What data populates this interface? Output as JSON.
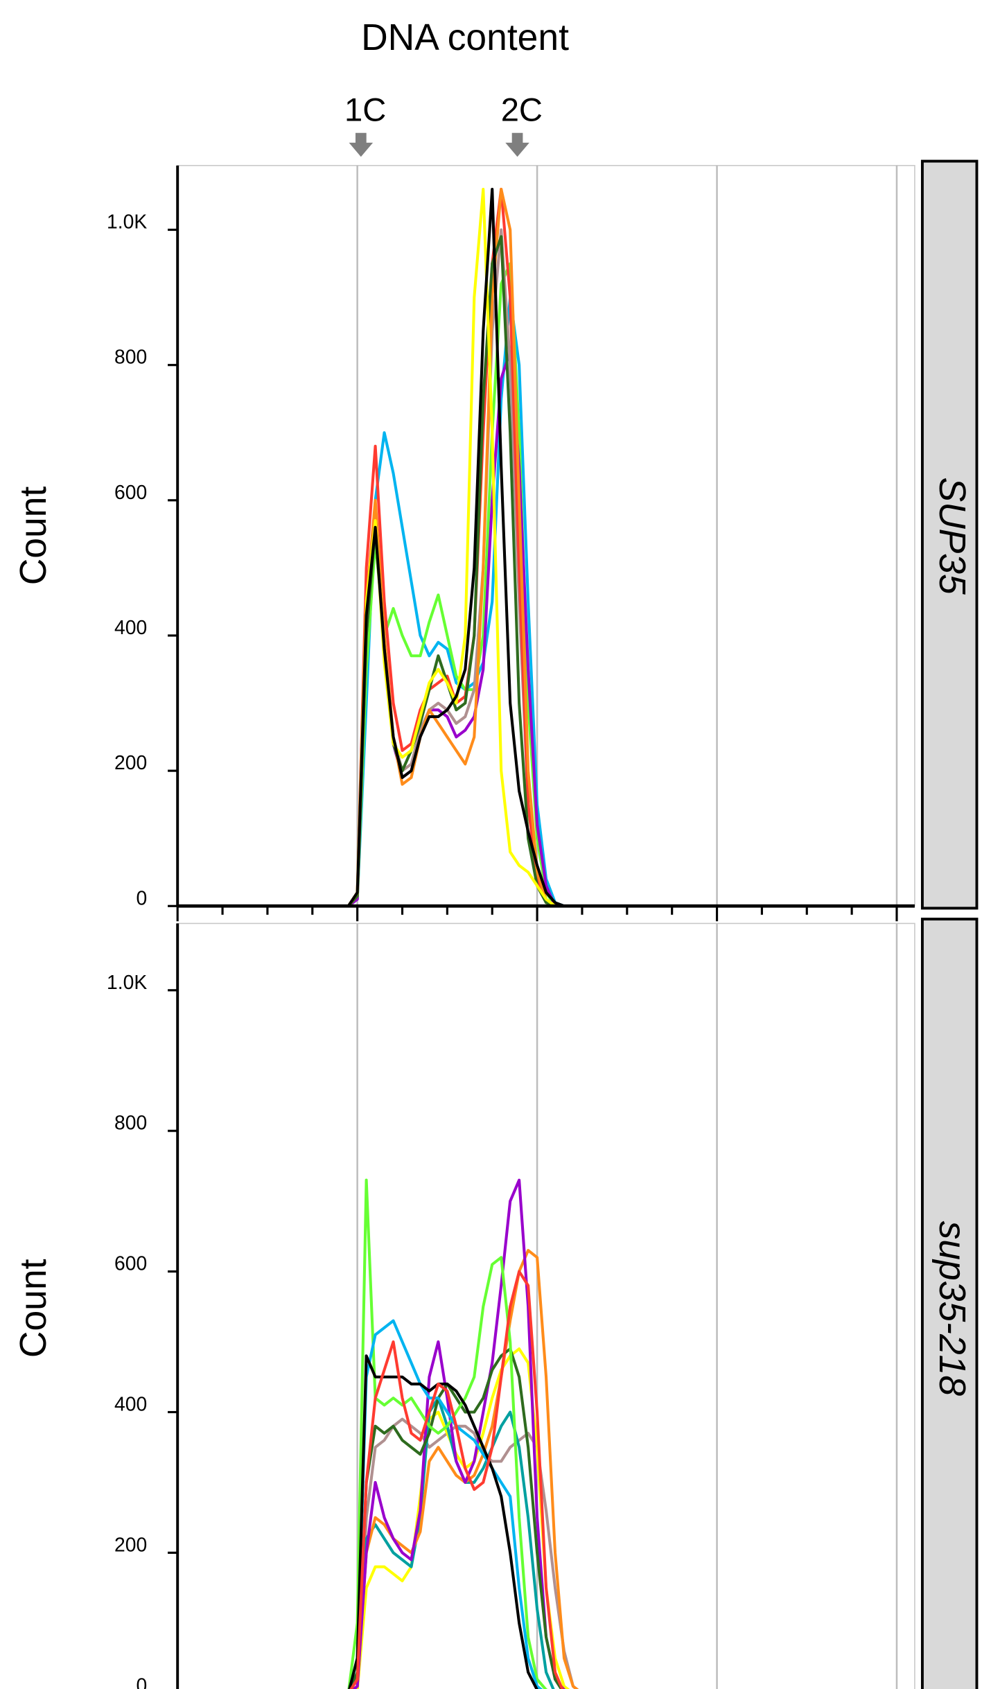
{
  "chart_data": [
    {
      "type": "line",
      "title": "DNA content",
      "ylabel": "Count",
      "strip": "SUP35",
      "annotations": [
        {
          "text": "1C",
          "x": 1.02
        },
        {
          "text": "2C",
          "x": 1.89
        }
      ],
      "xlim": [
        0,
        4.1
      ],
      "xticks": [
        0,
        0.25,
        0.5,
        0.75,
        1,
        1.25,
        1.5,
        1.75,
        2,
        2.25,
        2.5,
        2.75,
        3,
        3.25,
        3.5,
        3.75,
        4
      ],
      "grid_x": true,
      "ylim": [
        0,
        1095
      ],
      "yticks": [
        0,
        200,
        400,
        600,
        800,
        {
          "value": 1000,
          "label": "1.0K"
        }
      ],
      "x": [
        0,
        0.95,
        1.0,
        1.05,
        1.1,
        1.15,
        1.2,
        1.25,
        1.3,
        1.35,
        1.4,
        1.45,
        1.5,
        1.55,
        1.6,
        1.65,
        1.7,
        1.75,
        1.8,
        1.85,
        1.9,
        1.95,
        2.0,
        2.05,
        2.1,
        2.15,
        2.2,
        2.25,
        4.05
      ],
      "series": [
        {
          "color": "#00b4f0",
          "values": [
            0,
            0,
            10,
            300,
            600,
            700,
            640,
            560,
            480,
            400,
            370,
            390,
            380,
            330,
            320,
            330,
            360,
            450,
            750,
            900,
            800,
            450,
            150,
            40,
            5,
            0,
            0,
            0,
            0
          ]
        },
        {
          "color": "#66ff33",
          "values": [
            0,
            0,
            10,
            350,
            540,
            400,
            440,
            400,
            370,
            370,
            420,
            460,
            400,
            340,
            320,
            320,
            400,
            700,
            920,
            950,
            700,
            300,
            100,
            20,
            0,
            0,
            0,
            0,
            0
          ]
        },
        {
          "color": "#9900cc",
          "values": [
            0,
            0,
            10,
            400,
            570,
            380,
            240,
            190,
            200,
            250,
            290,
            290,
            280,
            250,
            260,
            280,
            350,
            600,
            780,
            820,
            650,
            350,
            120,
            30,
            0,
            0,
            0,
            0,
            0
          ]
        },
        {
          "color": "#b09090",
          "values": [
            0,
            0,
            15,
            420,
            580,
            390,
            250,
            200,
            210,
            260,
            290,
            300,
            290,
            270,
            280,
            320,
            500,
            850,
            1000,
            800,
            450,
            150,
            40,
            10,
            0,
            0,
            0,
            0,
            0
          ]
        },
        {
          "color": "#ff3b30",
          "values": [
            0,
            0,
            20,
            500,
            680,
            450,
            300,
            230,
            240,
            290,
            320,
            330,
            340,
            300,
            310,
            400,
            700,
            950,
            1060,
            900,
            500,
            150,
            40,
            10,
            0,
            0,
            0,
            0,
            0
          ]
        },
        {
          "color": "#ff8c1a",
          "values": [
            0,
            0,
            15,
            450,
            600,
            400,
            250,
            180,
            190,
            250,
            290,
            270,
            250,
            230,
            210,
            250,
            500,
            900,
            1060,
            1000,
            600,
            200,
            50,
            10,
            0,
            0,
            0,
            0,
            0
          ]
        },
        {
          "color": "#2e6b1e",
          "values": [
            0,
            0,
            15,
            400,
            560,
            380,
            240,
            200,
            230,
            270,
            320,
            370,
            330,
            290,
            300,
            400,
            750,
            950,
            990,
            700,
            300,
            100,
            30,
            5,
            0,
            0,
            0,
            0,
            0
          ]
        },
        {
          "color": "#ffff00",
          "values": [
            0,
            0,
            20,
            450,
            570,
            360,
            240,
            220,
            230,
            280,
            330,
            350,
            330,
            300,
            400,
            900,
            1060,
            700,
            200,
            80,
            60,
            50,
            30,
            10,
            0,
            0,
            0,
            0,
            0
          ]
        },
        {
          "color": "#000000",
          "values": [
            0,
            0,
            20,
            430,
            560,
            380,
            250,
            190,
            200,
            250,
            280,
            280,
            290,
            310,
            350,
            500,
            850,
            1060,
            650,
            300,
            170,
            110,
            60,
            20,
            5,
            0,
            0,
            0,
            0
          ]
        }
      ]
    },
    {
      "type": "line",
      "ylabel": "Count",
      "strip": "sup35-218",
      "xlim": [
        0,
        4.1
      ],
      "xticks": [
        0,
        0.25,
        0.5,
        0.75,
        1,
        1.25,
        1.5,
        1.75,
        2,
        2.25,
        2.5,
        2.75,
        3,
        3.25,
        3.5,
        3.75,
        4
      ],
      "grid_x": true,
      "ylim": [
        0,
        1095
      ],
      "yticks": [
        0,
        200,
        400,
        600,
        800,
        {
          "value": 1000,
          "label": "1.0K"
        }
      ],
      "x": [
        0,
        0.95,
        1.0,
        1.05,
        1.1,
        1.15,
        1.2,
        1.25,
        1.3,
        1.35,
        1.4,
        1.45,
        1.5,
        1.55,
        1.6,
        1.65,
        1.7,
        1.75,
        1.8,
        1.85,
        1.9,
        1.95,
        2.0,
        2.05,
        2.1,
        2.15,
        2.2,
        2.25,
        4.05
      ],
      "series": [
        {
          "color": "#b09090",
          "values": [
            0,
            0,
            10,
            250,
            350,
            360,
            380,
            390,
            380,
            370,
            350,
            360,
            370,
            380,
            380,
            370,
            340,
            330,
            330,
            350,
            360,
            370,
            350,
            260,
            150,
            60,
            10,
            0,
            0
          ]
        },
        {
          "color": "#ffff00",
          "values": [
            0,
            0,
            5,
            150,
            180,
            180,
            170,
            160,
            180,
            280,
            390,
            400,
            370,
            340,
            320,
            330,
            370,
            420,
            460,
            480,
            490,
            470,
            350,
            150,
            50,
            10,
            0,
            0,
            0
          ]
        },
        {
          "color": "#00a0a0",
          "values": [
            0,
            0,
            10,
            220,
            240,
            220,
            200,
            190,
            180,
            250,
            400,
            420,
            380,
            330,
            300,
            300,
            320,
            350,
            380,
            400,
            350,
            250,
            120,
            30,
            0,
            0,
            0,
            0,
            0
          ]
        },
        {
          "color": "#ff8c1a",
          "values": [
            0,
            0,
            10,
            200,
            250,
            240,
            220,
            210,
            200,
            230,
            330,
            350,
            330,
            310,
            300,
            310,
            340,
            380,
            450,
            530,
            600,
            630,
            620,
            450,
            200,
            50,
            10,
            0,
            0
          ]
        },
        {
          "color": "#9900cc",
          "values": [
            0,
            0,
            10,
            200,
            300,
            250,
            220,
            200,
            190,
            260,
            450,
            500,
            420,
            330,
            300,
            330,
            400,
            470,
            580,
            700,
            730,
            550,
            250,
            80,
            20,
            5,
            0,
            0,
            0
          ]
        },
        {
          "color": "#2e6b1e",
          "values": [
            0,
            0,
            30,
            300,
            380,
            370,
            380,
            360,
            350,
            340,
            370,
            420,
            440,
            420,
            400,
            400,
            420,
            460,
            480,
            490,
            450,
            350,
            200,
            80,
            20,
            0,
            0,
            0,
            0
          ]
        },
        {
          "color": "#66ff33",
          "values": [
            0,
            0,
            100,
            730,
            420,
            410,
            420,
            410,
            420,
            400,
            380,
            370,
            380,
            400,
            420,
            450,
            550,
            610,
            620,
            500,
            250,
            80,
            20,
            5,
            0,
            0,
            0,
            0,
            0
          ]
        },
        {
          "color": "#00b4f0",
          "values": [
            0,
            0,
            50,
            450,
            510,
            520,
            530,
            500,
            470,
            440,
            420,
            420,
            400,
            380,
            370,
            360,
            340,
            320,
            300,
            280,
            150,
            50,
            10,
            0,
            0,
            0,
            0,
            0,
            0
          ]
        },
        {
          "color": "#000000",
          "values": [
            0,
            0,
            50,
            480,
            450,
            450,
            450,
            450,
            440,
            440,
            430,
            440,
            440,
            430,
            410,
            380,
            350,
            320,
            280,
            200,
            100,
            30,
            5,
            0,
            0,
            0,
            0,
            0,
            0
          ]
        },
        {
          "color": "#ff3b30",
          "values": [
            0,
            0,
            20,
            300,
            420,
            460,
            500,
            420,
            370,
            360,
            400,
            440,
            430,
            380,
            320,
            290,
            300,
            350,
            450,
            550,
            600,
            580,
            400,
            150,
            30,
            0,
            0,
            0,
            0
          ]
        }
      ]
    }
  ]
}
